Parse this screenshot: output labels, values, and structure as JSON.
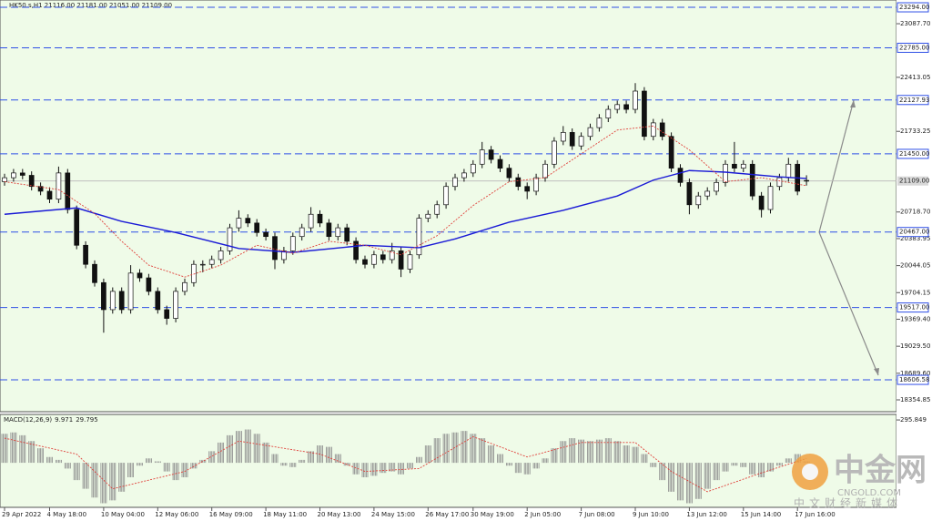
{
  "chart_data": [
    {
      "type": "candlestick",
      "title": "HK50.s,H1 21116.00 21181.00 21051.00 21109.00",
      "ylim": [
        18206,
        23386
      ],
      "yticks": [
        {
          "value": 23087.7,
          "label": "23087.70"
        },
        {
          "value": 22413.05,
          "label": "22413.05"
        },
        {
          "value": 21733.25,
          "label": "21733.25"
        },
        {
          "value": 20718.7,
          "label": "20718.70"
        },
        {
          "value": 20383.95,
          "label": "20383.95"
        },
        {
          "value": 20044.05,
          "label": "20044.05"
        },
        {
          "value": 19704.15,
          "label": "19704.15"
        },
        {
          "value": 19369.4,
          "label": "19369.40"
        },
        {
          "value": 19029.5,
          "label": "19029.50"
        },
        {
          "value": 18689.6,
          "label": "18689.60"
        },
        {
          "value": 18354.85,
          "label": "18354.85"
        }
      ],
      "levels": [
        {
          "value": 23294,
          "label": "23294.00"
        },
        {
          "value": 22785,
          "label": "22785.00"
        },
        {
          "value": 22127.93,
          "label": "22127.93"
        },
        {
          "value": 21450,
          "label": "21450.00"
        },
        {
          "value": 20467,
          "label": "20467.00"
        },
        {
          "value": 19517,
          "label": "19517.00"
        },
        {
          "value": 18606.58,
          "label": "18606.58"
        }
      ],
      "level_color": "#2f4fe6",
      "current_price": {
        "value": 21109,
        "label": "21109.00"
      },
      "categories": [
        "29 Apr 2022",
        null,
        null,
        null,
        null,
        "4 May 18:00",
        null,
        null,
        null,
        null,
        null,
        "10 May 04:00",
        null,
        null,
        null,
        null,
        null,
        "12 May 06:00",
        null,
        null,
        null,
        null,
        null,
        "16 May 09:00",
        null,
        null,
        null,
        null,
        null,
        "18 May 11:00",
        null,
        null,
        null,
        null,
        null,
        "20 May 13:00",
        null,
        null,
        null,
        null,
        null,
        "24 May 15:00",
        null,
        null,
        null,
        null,
        null,
        "26 May 17:00",
        null,
        null,
        null,
        null,
        "30 May 19:00",
        null,
        null,
        null,
        null,
        null,
        "2 Jun 05:00",
        null,
        null,
        null,
        null,
        null,
        "7 Jun 08:00",
        null,
        null,
        null,
        null,
        null,
        "9 Jun 10:00",
        null,
        null,
        null,
        null,
        null,
        "13 Jun 12:00",
        null,
        null,
        null,
        null,
        null,
        "15 Jun 14:00",
        null,
        null,
        null,
        null,
        null,
        "17 Jun 16:00",
        null
      ],
      "ohlc": [
        [
          21100,
          21200,
          21050,
          21150
        ],
        [
          21150,
          21260,
          21100,
          21210
        ],
        [
          21210,
          21260,
          21130,
          21180
        ],
        [
          21180,
          21230,
          20990,
          21040
        ],
        [
          21040,
          21090,
          20930,
          20980
        ],
        [
          20980,
          21030,
          20830,
          20880
        ],
        [
          20880,
          21290,
          20830,
          21210
        ],
        [
          21210,
          21260,
          20700,
          20750
        ],
        [
          20750,
          20800,
          20250,
          20300
        ],
        [
          20300,
          20350,
          20010,
          20060
        ],
        [
          20060,
          20110,
          19780,
          19830
        ],
        [
          19830,
          19880,
          19200,
          19490
        ],
        [
          19490,
          19770,
          19440,
          19720
        ],
        [
          19720,
          19770,
          19440,
          19490
        ],
        [
          19490,
          20050,
          19440,
          19950
        ],
        [
          19950,
          20000,
          19840,
          19890
        ],
        [
          19890,
          19940,
          19670,
          19720
        ],
        [
          19720,
          19770,
          19440,
          19490
        ],
        [
          19490,
          19540,
          19300,
          19380
        ],
        [
          19380,
          19770,
          19330,
          19720
        ],
        [
          19720,
          19880,
          19670,
          19830
        ],
        [
          19830,
          20110,
          19780,
          20060
        ],
        [
          20060,
          20110,
          19960,
          20060
        ],
        [
          20060,
          20170,
          20010,
          20120
        ],
        [
          20120,
          20280,
          20070,
          20230
        ],
        [
          20230,
          20570,
          20180,
          20520
        ],
        [
          20520,
          20740,
          20470,
          20640
        ],
        [
          20640,
          20690,
          20530,
          20580
        ],
        [
          20580,
          20630,
          20410,
          20460
        ],
        [
          20460,
          20510,
          20360,
          20410
        ],
        [
          20410,
          20460,
          20000,
          20120
        ],
        [
          20120,
          20280,
          20070,
          20230
        ],
        [
          20230,
          20460,
          20180,
          20410
        ],
        [
          20410,
          20570,
          20360,
          20520
        ],
        [
          20520,
          20780,
          20470,
          20690
        ],
        [
          20690,
          20740,
          20530,
          20580
        ],
        [
          20580,
          20630,
          20360,
          20410
        ],
        [
          20410,
          20570,
          20360,
          20520
        ],
        [
          20520,
          20570,
          20300,
          20350
        ],
        [
          20350,
          20400,
          20070,
          20120
        ],
        [
          20120,
          20170,
          20010,
          20060
        ],
        [
          20060,
          20230,
          20010,
          20180
        ],
        [
          20180,
          20230,
          20070,
          20120
        ],
        [
          20120,
          20330,
          20070,
          20230
        ],
        [
          20230,
          20280,
          19900,
          20000
        ],
        [
          20000,
          20230,
          19950,
          20180
        ],
        [
          20180,
          20690,
          20130,
          20640
        ],
        [
          20640,
          20740,
          20590,
          20690
        ],
        [
          20690,
          20860,
          20640,
          20810
        ],
        [
          20810,
          21090,
          20760,
          21040
        ],
        [
          21040,
          21200,
          20990,
          21150
        ],
        [
          21150,
          21260,
          21100,
          21210
        ],
        [
          21210,
          21370,
          21160,
          21320
        ],
        [
          21320,
          21600,
          21270,
          21500
        ],
        [
          21500,
          21550,
          21330,
          21380
        ],
        [
          21380,
          21430,
          21220,
          21270
        ],
        [
          21270,
          21320,
          21100,
          21150
        ],
        [
          21150,
          21200,
          20990,
          21040
        ],
        [
          21040,
          21090,
          20880,
          20980
        ],
        [
          20980,
          21200,
          20930,
          21150
        ],
        [
          21150,
          21370,
          21100,
          21320
        ],
        [
          21320,
          21660,
          21270,
          21610
        ],
        [
          21610,
          21800,
          21560,
          21720
        ],
        [
          21720,
          21770,
          21500,
          21550
        ],
        [
          21550,
          21720,
          21500,
          21670
        ],
        [
          21670,
          21830,
          21620,
          21780
        ],
        [
          21780,
          21950,
          21730,
          21900
        ],
        [
          21900,
          22060,
          21850,
          22010
        ],
        [
          22010,
          22120,
          21960,
          22070
        ],
        [
          22070,
          22120,
          21960,
          22010
        ],
        [
          22010,
          22340,
          21960,
          22240
        ],
        [
          22240,
          22290,
          21620,
          21670
        ],
        [
          21670,
          21890,
          21620,
          21840
        ],
        [
          21840,
          21890,
          21620,
          21670
        ],
        [
          21670,
          21720,
          21220,
          21270
        ],
        [
          21270,
          21320,
          21040,
          21090
        ],
        [
          21090,
          21140,
          20690,
          20810
        ],
        [
          20810,
          20970,
          20760,
          20920
        ],
        [
          20920,
          21030,
          20870,
          20980
        ],
        [
          20980,
          21140,
          20930,
          21090
        ],
        [
          21090,
          21370,
          21040,
          21320
        ],
        [
          21320,
          21600,
          21220,
          21270
        ],
        [
          21270,
          21370,
          21220,
          21320
        ],
        [
          21320,
          21370,
          20870,
          20920
        ],
        [
          20920,
          20970,
          20650,
          20750
        ],
        [
          20750,
          21090,
          20700,
          21040
        ],
        [
          21040,
          21200,
          20990,
          21150
        ],
        [
          21150,
          21400,
          21100,
          21320
        ],
        [
          21320,
          21370,
          20930,
          20980
        ],
        [
          21116,
          21181,
          21051,
          21109
        ]
      ],
      "overlays": [
        {
          "color": "#1a1ad6",
          "style": "solid",
          "index": [
            0,
            8,
            13,
            19,
            26,
            32,
            40,
            46,
            50,
            56,
            62,
            68,
            72,
            76,
            80,
            86,
            89
          ],
          "values": [
            20690,
            20770,
            20600,
            20460,
            20260,
            20210,
            20300,
            20270,
            20380,
            20590,
            20740,
            20920,
            21120,
            21240,
            21220,
            21160,
            21140
          ]
        },
        {
          "color": "#e0403a",
          "style": "dotted",
          "index": [
            0,
            6,
            10,
            13,
            16,
            20,
            24,
            28,
            32,
            36,
            40,
            44,
            48,
            52,
            56,
            60,
            64,
            68,
            72,
            76,
            80,
            84,
            89
          ],
          "values": [
            21100,
            21000,
            20700,
            20350,
            20050,
            19900,
            20050,
            20300,
            20200,
            20350,
            20300,
            20180,
            20420,
            20800,
            21100,
            21150,
            21450,
            21750,
            21800,
            21500,
            21100,
            21150,
            21050
          ]
        }
      ]
    },
    {
      "type": "macd",
      "title": "MACD(12,26,9)",
      "ylim": [
        -308,
        334
      ],
      "yticks": [
        295.849
      ],
      "histogram": {
        "color": "#8a8a8a",
        "values": [
          200,
          210,
          190,
          150,
          100,
          40,
          20,
          -40,
          -120,
          -180,
          -240,
          -280,
          -260,
          -200,
          -100,
          -20,
          30,
          10,
          -60,
          -120,
          -100,
          -40,
          20,
          80,
          140,
          190,
          220,
          230,
          200,
          140,
          60,
          -20,
          -30,
          20,
          80,
          120,
          110,
          60,
          -20,
          -80,
          -100,
          -90,
          -70,
          -60,
          -80,
          -40,
          40,
          120,
          170,
          200,
          210,
          220,
          200,
          170,
          120,
          60,
          -20,
          -70,
          -80,
          -40,
          30,
          100,
          150,
          170,
          160,
          150,
          160,
          170,
          150,
          120,
          110,
          60,
          -30,
          -120,
          -200,
          -260,
          -280,
          -250,
          -180,
          -120,
          -60,
          -20,
          -30,
          -80,
          -100,
          -60,
          -20,
          30,
          60,
          9.971
        ]
      },
      "signal": {
        "color": "#e0403a",
        "index": [
          0,
          8,
          12,
          16,
          20,
          26,
          31,
          35,
          40,
          46,
          52,
          58,
          64,
          70,
          74,
          78,
          84,
          89
        ],
        "values": [
          170,
          60,
          -180,
          -120,
          -60,
          150,
          100,
          60,
          -60,
          -40,
          180,
          40,
          140,
          140,
          -60,
          -200,
          -70,
          29.795
        ]
      }
    }
  ],
  "watermark": {
    "name": "中金网",
    "site": "CNGOLD.COM",
    "slogan": "中文财经新媒体"
  }
}
